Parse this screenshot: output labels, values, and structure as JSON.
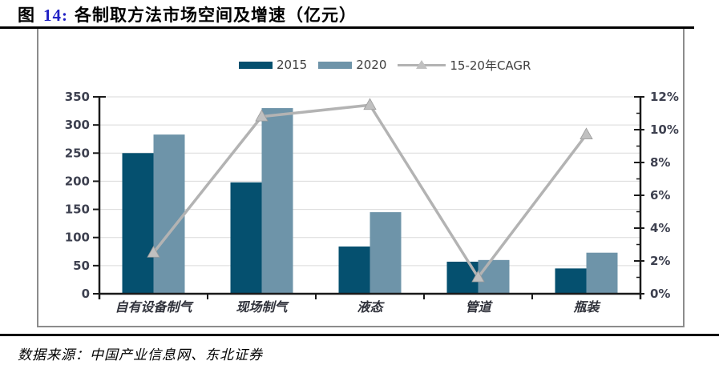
{
  "title": {
    "prefix": "图",
    "number": "14:",
    "text": "各制取方法市场空间及增速（亿元）"
  },
  "source": {
    "label": "数据来源：",
    "text": "中国产业信息网、东北证券"
  },
  "legend": {
    "items": [
      {
        "label": "2015",
        "type": "swatch",
        "color": "#05506f"
      },
      {
        "label": "2020",
        "type": "swatch",
        "color": "#6e94a9"
      },
      {
        "label": "15-20年CAGR",
        "type": "line-marker",
        "color": "#b3b3b3"
      }
    ]
  },
  "colors": {
    "bar_2015": "#05506f",
    "bar_2020": "#6e94a9",
    "cagr_line": "#b3b3b3",
    "cagr_marker_fill": "#c0c0c0",
    "cagr_marker_stroke": "#9b9b9b",
    "grid": "#dadada",
    "axis": "#1a1a1a",
    "tick_label": "#3e4150",
    "category_label": "#30323b",
    "frame_border": "#8c8c8c",
    "title_number": "#2222c4"
  },
  "chart_data": {
    "type": "bar",
    "title": "各制取方法市场空间及增速（亿元）",
    "categories": [
      "自有设备制气",
      "现场制气",
      "液态",
      "管道",
      "瓶装"
    ],
    "series": [
      {
        "name": "2015",
        "type": "bar",
        "axis": "left",
        "values": [
          250,
          198,
          84,
          57,
          45
        ],
        "color": "#05506f"
      },
      {
        "name": "2020",
        "type": "bar",
        "axis": "left",
        "values": [
          283,
          330,
          145,
          60,
          73
        ],
        "color": "#6e94a9"
      },
      {
        "name": "15-20年CAGR",
        "type": "line",
        "axis": "right",
        "values": [
          2.5,
          10.8,
          11.5,
          1.0,
          9.7
        ],
        "color": "#b3b3b3"
      }
    ],
    "left_axis": {
      "min": 0,
      "max": 350,
      "step": 50,
      "ticks": [
        "0",
        "50",
        "100",
        "150",
        "200",
        "250",
        "300",
        "350"
      ]
    },
    "right_axis": {
      "min": 0,
      "max": 12,
      "step": 2,
      "unit": "%",
      "ticks": [
        "0%",
        "2%",
        "4%",
        "6%",
        "8%",
        "10%",
        "12%"
      ]
    },
    "grid": true,
    "legend_position": "top"
  }
}
